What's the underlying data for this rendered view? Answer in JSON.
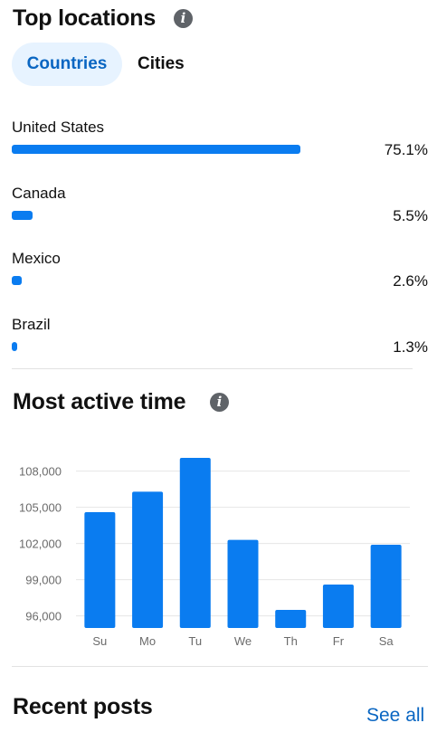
{
  "top_locations": {
    "title": "Top locations",
    "info_icon": "info-icon",
    "tabs": [
      {
        "label": "Countries",
        "active": true
      },
      {
        "label": "Cities",
        "active": false
      }
    ],
    "rows": [
      {
        "name": "United States",
        "value": 75.1,
        "display": "75.1%"
      },
      {
        "name": "Canada",
        "value": 5.5,
        "display": "5.5%"
      },
      {
        "name": "Mexico",
        "value": 2.6,
        "display": "2.6%"
      },
      {
        "name": "Brazil",
        "value": 1.3,
        "display": "1.3%"
      }
    ]
  },
  "most_active": {
    "title": "Most active time",
    "info_icon": "info-icon"
  },
  "recent_posts": {
    "title": "Recent posts",
    "see_all": "See all"
  },
  "colors": {
    "bar": "#0a7cf0",
    "accent": "#0a66c2",
    "tab_bg": "#e7f3ff"
  },
  "chart_data": [
    {
      "type": "bar",
      "orientation": "horizontal",
      "categories": [
        "United States",
        "Canada",
        "Mexico",
        "Brazil"
      ],
      "values": [
        75.1,
        5.5,
        2.6,
        1.3
      ],
      "unit": "%"
    },
    {
      "type": "bar",
      "categories": [
        "Su",
        "Mo",
        "Tu",
        "We",
        "Th",
        "Fr",
        "Sa"
      ],
      "values": [
        104600,
        106300,
        109100,
        102300,
        96500,
        98600,
        101900
      ],
      "ylim": [
        95000,
        110000
      ],
      "yticks": [
        96000,
        99000,
        102000,
        105000,
        108000
      ],
      "ytick_labels": [
        "96,000",
        "99,000",
        "102,000",
        "105,000",
        "108,000"
      ],
      "grid": true
    }
  ]
}
